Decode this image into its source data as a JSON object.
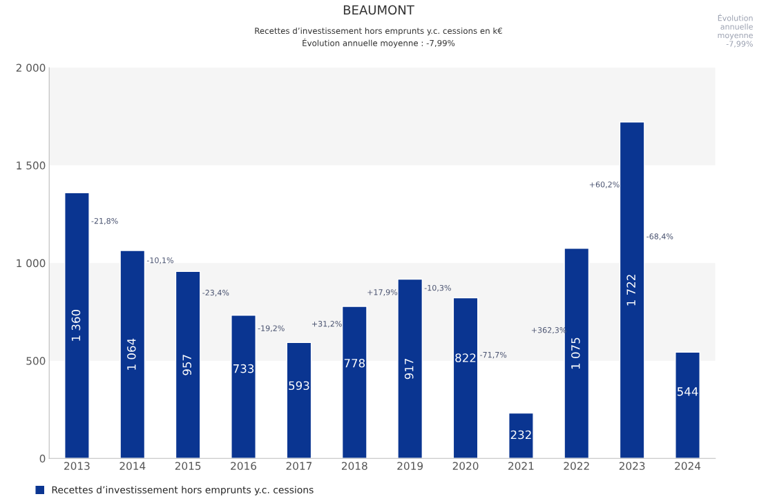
{
  "chart_data": {
    "type": "bar",
    "title": "BEAUMONT",
    "subtitle": "Recettes d’investissement hors emprunts y.c. cessions en k€\nÉvolution annuelle moyenne : -7,99%",
    "categories": [
      "2013",
      "2014",
      "2015",
      "2016",
      "2017",
      "2018",
      "2019",
      "2020",
      "2021",
      "2022",
      "2023",
      "2024"
    ],
    "series": [
      {
        "name": "Recettes d’investissement hors emprunts y.c. cessions",
        "color": "#0a3591",
        "values": [
          1360,
          1064,
          957,
          733,
          593,
          778,
          917,
          822,
          232,
          1075,
          1722,
          544
        ],
        "value_labels": [
          "1 360",
          "1 064",
          "957",
          "733",
          "593",
          "778",
          "917",
          "822",
          "232",
          "1 075",
          "1 722",
          "544"
        ]
      }
    ],
    "ylim": [
      0,
      2000
    ],
    "yticks": [
      0,
      500,
      {
        "value": 1000,
        "label": "1 000"
      },
      {
        "value": 1500,
        "label": "1 500"
      },
      {
        "value": 2000,
        "label": "2 000"
      }
    ],
    "bands": [
      {
        "axis": "y",
        "from": 500,
        "to": 1000,
        "color": "#f5f5f5"
      },
      {
        "axis": "y",
        "from": 1500,
        "to": 2000,
        "color": "#f5f5f5"
      }
    ],
    "annotations": [
      "Évolution\nannuelle\nmoyenne\n-7,99%",
      "-21,8%",
      "-10,1%",
      "-23,4%",
      "-19,2%",
      "+31,2%",
      "+17,9%",
      "-10,3%",
      "-71,7%",
      "+362,3%",
      "+60,2%",
      "-68,4%"
    ],
    "legend": "bottom left",
    "grid": false
  }
}
